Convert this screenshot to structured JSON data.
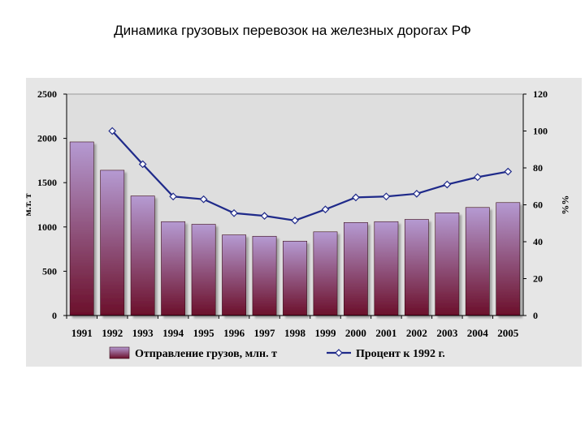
{
  "slide_title": "Динамика грузовых перевозок на железных дорогах РФ",
  "chart_data": {
    "type": "bar+line",
    "categories": [
      "1991",
      "1992",
      "1993",
      "1994",
      "1995",
      "1996",
      "1997",
      "1998",
      "1999",
      "2000",
      "2001",
      "2002",
      "2003",
      "2004",
      "2005"
    ],
    "series": [
      {
        "name": "Отправление грузов, млн. т",
        "type": "bar",
        "axis": "left",
        "values": [
          1960,
          1640,
          1350,
          1060,
          1030,
          910,
          895,
          840,
          945,
          1050,
          1060,
          1085,
          1160,
          1220,
          1275
        ]
      },
      {
        "name": "Процент к 1992 г.",
        "type": "line",
        "axis": "right",
        "values": [
          null,
          100,
          82,
          64.5,
          63,
          55.5,
          54,
          51.5,
          57.5,
          64,
          64.5,
          66,
          71,
          75,
          78
        ]
      }
    ],
    "ylabel": "м.т. т",
    "y2label": "%%",
    "ylim": [
      0,
      2500
    ],
    "y2lim": [
      0,
      120
    ],
    "yticks": [
      "0",
      "500",
      "1000",
      "1500",
      "2000",
      "2500"
    ],
    "y2ticks": [
      "0",
      "20",
      "40",
      "60",
      "80",
      "100",
      "120"
    ],
    "grid": false,
    "legend_position": "bottom",
    "colors": {
      "bar_top": "#b59ad2",
      "bar_bottom": "#6b0f2a",
      "line": "#1f2a8a",
      "plot_bg": "#dedede"
    }
  }
}
